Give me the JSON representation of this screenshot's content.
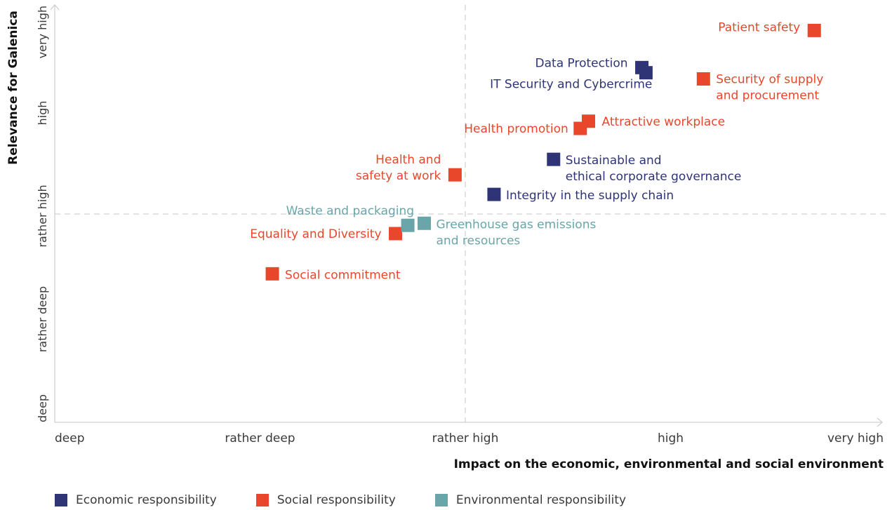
{
  "chart_data": {
    "type": "scatter",
    "xlabel": "Impact on the economic, environmental and social environment",
    "ylabel": "Relevance for Galenica",
    "x_ticks": [
      "deep",
      "rather deep",
      "rather high",
      "high",
      "very high"
    ],
    "y_ticks": [
      "deep",
      "rather deep",
      "rather high",
      "high",
      "very high"
    ],
    "xlim": [
      0,
      4
    ],
    "ylim": [
      0,
      4
    ],
    "grid": false,
    "quadrant_lines": {
      "x": 2.0,
      "y": 2.02
    },
    "legend_position": "bottom-left",
    "series": [
      {
        "name": "Economic responsibility",
        "color": "#2e3476",
        "points": [
          {
            "label": "Data Protection",
            "x": 2.86,
            "y": 3.44
          },
          {
            "label": "IT Security and Cybercrime",
            "x": 2.88,
            "y": 3.39
          },
          {
            "label": "Sustainable and ethical corporate governance",
            "x": 2.43,
            "y": 2.55
          },
          {
            "label": "Integrity in the supply chain",
            "x": 2.14,
            "y": 2.21
          }
        ]
      },
      {
        "name": "Social responsibility",
        "color": "#e8472b",
        "points": [
          {
            "label": "Patient safety",
            "x": 3.7,
            "y": 3.8
          },
          {
            "label": "Security of supply and procurement",
            "x": 3.16,
            "y": 3.33
          },
          {
            "label": "Attractive workplace",
            "x": 2.6,
            "y": 2.92
          },
          {
            "label": "Health promotion",
            "x": 2.56,
            "y": 2.85
          },
          {
            "label": "Health and safety at work",
            "x": 1.95,
            "y": 2.4
          },
          {
            "label": "Equality and Diversity",
            "x": 1.66,
            "y": 1.83
          },
          {
            "label": "Social commitment",
            "x": 1.06,
            "y": 1.44
          }
        ]
      },
      {
        "name": "Environmental responsibility",
        "color": "#6aa5a9",
        "points": [
          {
            "label": "Waste and packaging",
            "x": 1.72,
            "y": 1.91
          },
          {
            "label": "Greenhouse gas emissions and resources",
            "x": 1.8,
            "y": 1.93
          }
        ]
      }
    ]
  },
  "point_labels": {
    "Patient safety": [
      "Patient safety"
    ],
    "Data Protection": [
      "Data Protection"
    ],
    "IT Security and Cybercrime": [
      "IT Security and Cybercrime"
    ],
    "Security of supply and procurement": [
      "Security of supply",
      "and procurement"
    ],
    "Attractive workplace": [
      "Attractive workplace"
    ],
    "Health promotion": [
      "Health promotion"
    ],
    "Health and safety at work": [
      "Health and",
      "safety at work"
    ],
    "Sustainable and ethical corporate governance": [
      "Sustainable and",
      "ethical corporate governance"
    ],
    "Integrity in the supply chain": [
      "Integrity in the supply chain"
    ],
    "Waste and packaging": [
      "Waste and packaging"
    ],
    "Greenhouse gas emissions and resources": [
      "Greenhouse gas emissions",
      "and resources"
    ],
    "Equality and Diversity": [
      "Equality and Diversity"
    ],
    "Social commitment": [
      "Social commitment"
    ]
  }
}
